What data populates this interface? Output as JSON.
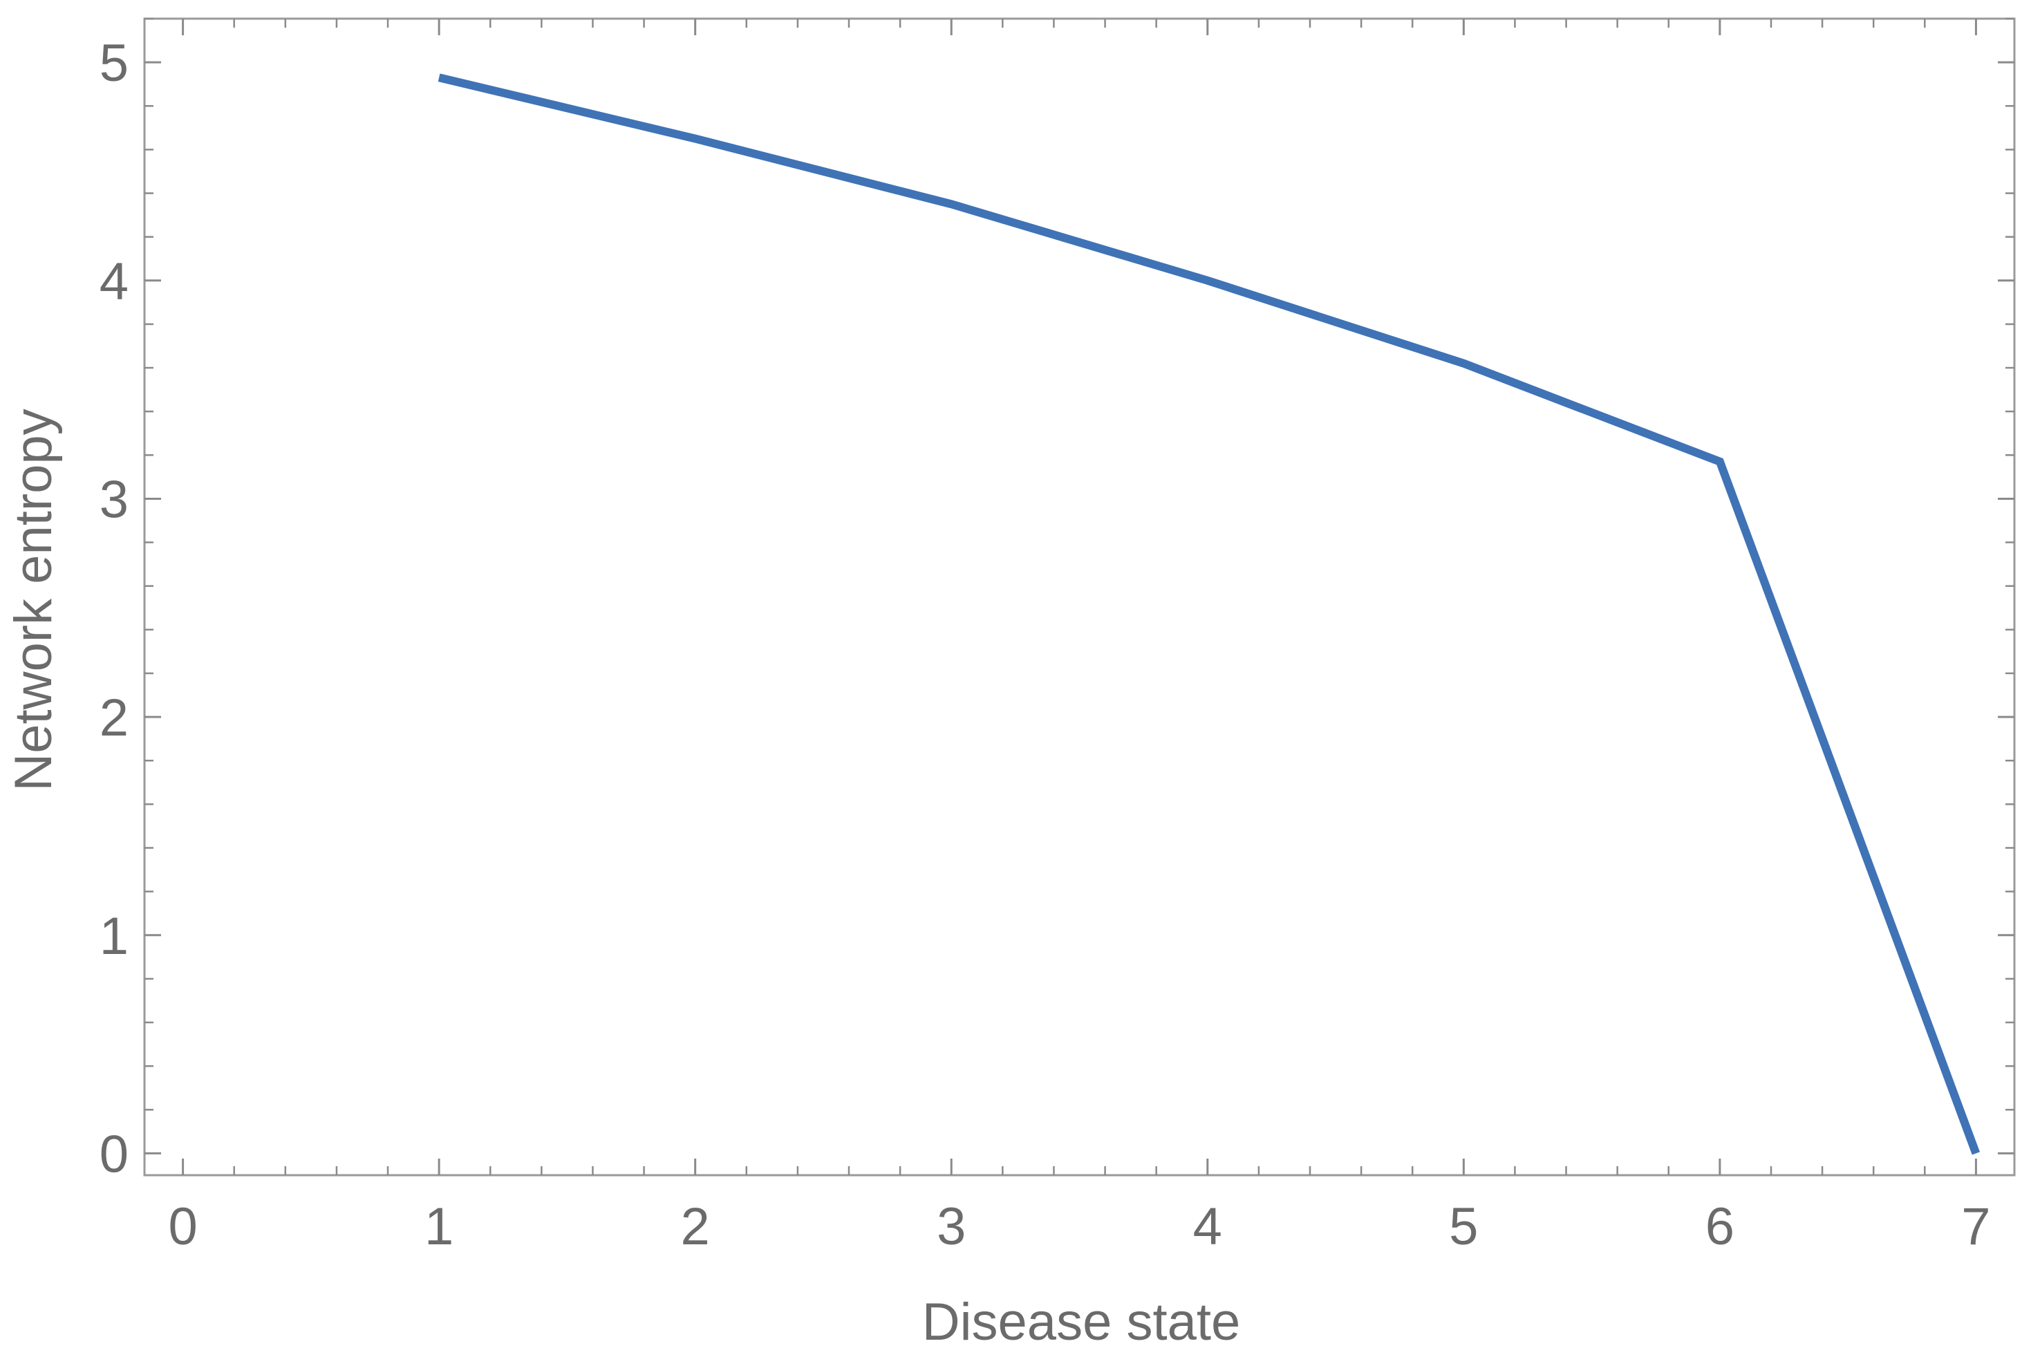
{
  "chart_data": {
    "type": "line",
    "title": "",
    "xlabel": "Disease state",
    "ylabel": "Network entropy",
    "xlim": [
      -0.15,
      7.15
    ],
    "ylim": [
      -0.1,
      5.2
    ],
    "x_ticks": [
      0,
      1,
      2,
      3,
      4,
      5,
      6,
      7
    ],
    "y_ticks": [
      0,
      1,
      2,
      3,
      4,
      5
    ],
    "x_minor_step": 0.2,
    "y_minor_step": 0.2,
    "grid": false,
    "legend": "none",
    "series": [
      {
        "color": "#3f73b6",
        "x": [
          1,
          2,
          3,
          4,
          5,
          6,
          7
        ],
        "y": [
          4.93,
          4.65,
          4.35,
          4.0,
          3.62,
          3.17,
          0.0
        ]
      }
    ],
    "colors": {
      "line": "#3f73b6",
      "frame": "#9a9a9a",
      "tick": "#8a8a8a",
      "text": "#6b6b6b"
    }
  }
}
